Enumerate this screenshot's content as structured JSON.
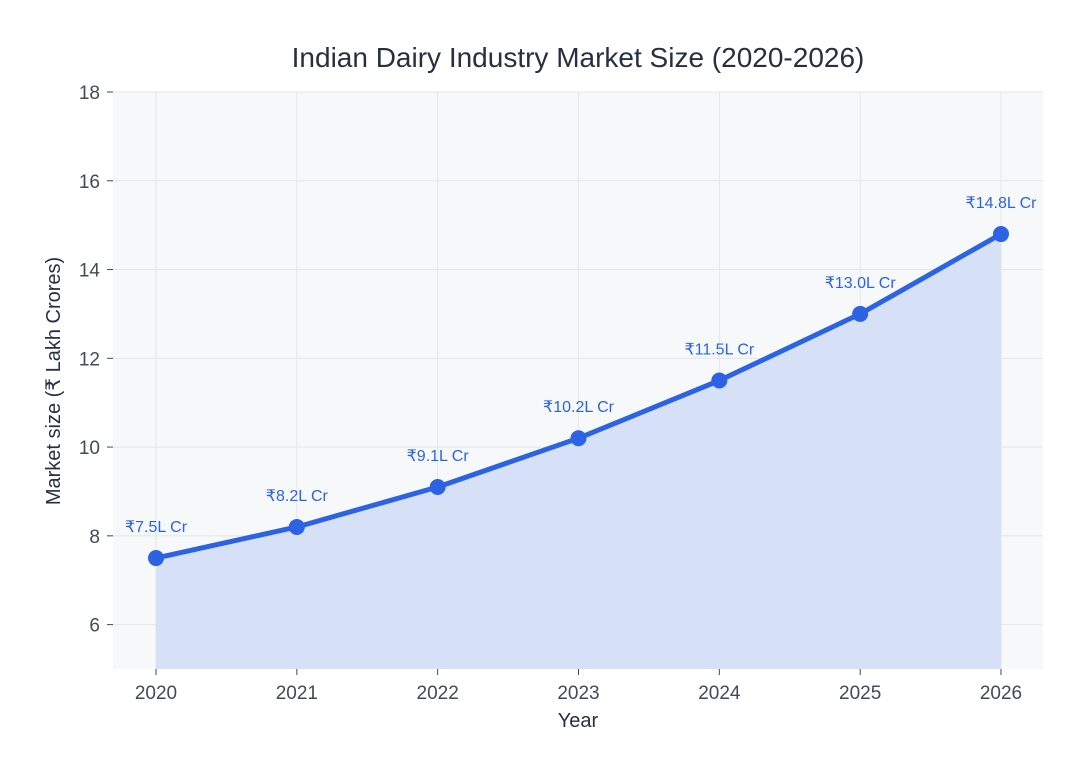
{
  "chart_data": {
    "type": "area",
    "title": "Indian Dairy Industry Market Size (2020-2026)",
    "xlabel": "Year",
    "ylabel": "Market size (₹ Lakh Crores)",
    "x": [
      "2020",
      "2021",
      "2022",
      "2023",
      "2024",
      "2025",
      "2026"
    ],
    "ylim": [
      5,
      18
    ],
    "yticks": [
      6,
      8,
      10,
      12,
      14,
      16,
      18
    ],
    "grid": true,
    "series": [
      {
        "values": [
          7.5,
          8.2,
          9.1,
          10.2,
          11.5,
          13.0,
          14.8
        ],
        "labels": [
          "₹7.5L Cr",
          "₹8.2L Cr",
          "₹9.1L Cr",
          "₹10.2L Cr",
          "₹11.5L Cr",
          "₹13.0L Cr",
          "₹14.8L Cr"
        ]
      }
    ],
    "colors": {
      "line": "#2b63e4",
      "fill": "#d6e1f8",
      "plot_background": "#f7f8fa",
      "grid": "#e3e6eb"
    }
  }
}
